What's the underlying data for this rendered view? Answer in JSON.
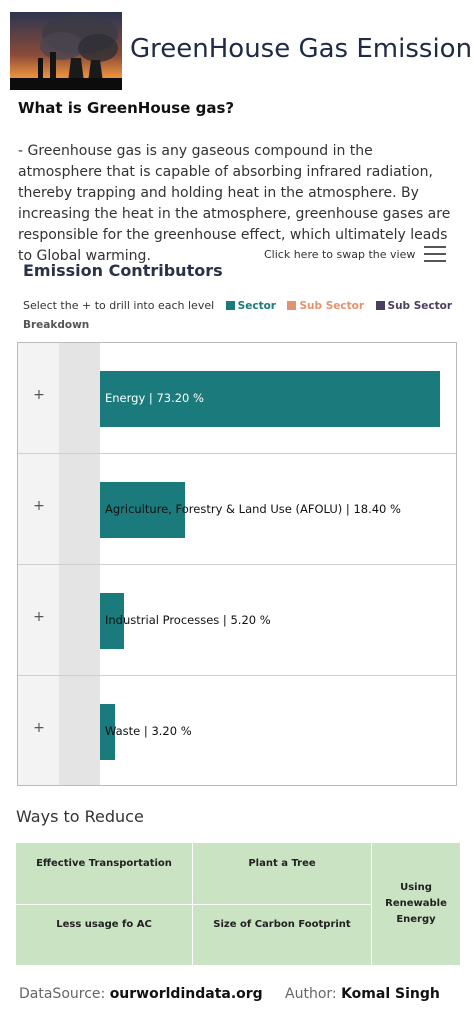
{
  "header": {
    "title": "GreenHouse Gas Emission",
    "image_icon": "factory-smoke-photo"
  },
  "intro": {
    "heading": "What is GreenHouse gas?",
    "text": "- Greenhouse gas is any gaseous compound in the atmosphere that is capable of absorbing infrared radiation, thereby trapping and holding heat in the atmosphere. By increasing the heat in the atmosphere, greenhouse gases are responsible for the greenhouse effect, which ultimately leads to Global warming."
  },
  "contributors": {
    "title": "Emission Contributors",
    "swap_link": "Click here to swap the view",
    "menu_icon": "hamburger-menu-icon",
    "instruction": "Select the + to drill into each level",
    "legend": [
      {
        "label": "Sector",
        "color": "#1b7a7c"
      },
      {
        "label": "Sub Sector",
        "color": "#e3926d"
      },
      {
        "label": "Sub Sector",
        "color": "#4a3f5e"
      }
    ],
    "legend_extra": "Breakdown",
    "expand_symbol": "+"
  },
  "chart_data": {
    "type": "bar",
    "orientation": "horizontal",
    "categories": [
      "Energy",
      "Agriculture, Forestry & Land Use (AFOLU)",
      "Industrial Processes",
      "Waste"
    ],
    "values": [
      73.2,
      18.4,
      5.2,
      3.2
    ],
    "labels": [
      "Energy | 73.20 %",
      "Agriculture, Forestry & Land Use (AFOLU) | 18.40 %",
      "Industrial Processes | 5.20 %",
      "Waste | 3.20 %"
    ],
    "color": "#1b7a7c"
  },
  "reduce": {
    "title": "Ways to Reduce",
    "items": [
      "Effective Transportation",
      "Plant a Tree",
      "Less usage fo AC",
      "Size of Carbon Footprint",
      "Using Renewable Energy"
    ]
  },
  "footer": {
    "source_label": "DataSource:",
    "source_value": "ourworldindata.org",
    "author_label": "Author:",
    "author_value": "Komal Singh"
  }
}
